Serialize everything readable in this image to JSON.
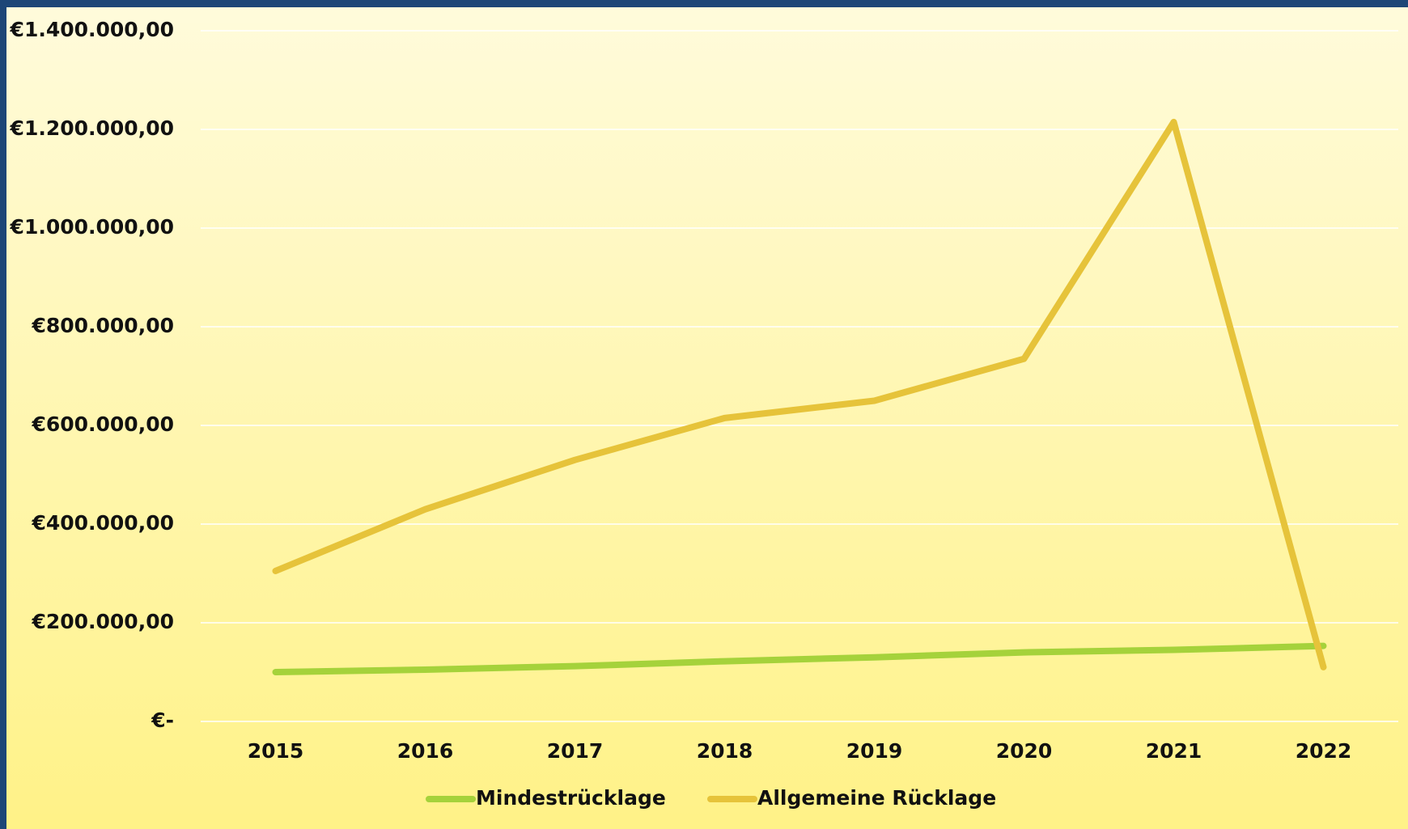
{
  "chart_data": {
    "type": "line",
    "categories": [
      "2015",
      "2016",
      "2017",
      "2018",
      "2019",
      "2020",
      "2021",
      "2022"
    ],
    "series": [
      {
        "name": "Mindestrücklage",
        "color": "#a5d23b",
        "values": [
          100000,
          105000,
          112000,
          122000,
          130000,
          140000,
          145000,
          153000
        ]
      },
      {
        "name": "Allgemeine Rücklage",
        "color": "#e6c33a",
        "values": [
          305000,
          430000,
          530000,
          615000,
          650000,
          735000,
          1215000,
          110000
        ]
      }
    ],
    "ylim": [
      0,
      1400000
    ],
    "yticks": [
      {
        "value": 0,
        "label": "€-"
      },
      {
        "value": 200000,
        "label": "€200.000,00"
      },
      {
        "value": 400000,
        "label": "€400.000,00"
      },
      {
        "value": 600000,
        "label": "€600.000,00"
      },
      {
        "value": 800000,
        "label": "€800.000,00"
      },
      {
        "value": 1000000,
        "label": "€1.000.000,00"
      },
      {
        "value": 1200000,
        "label": "€1.200.000,00"
      },
      {
        "value": 1400000,
        "label": "€1.400.000,00"
      }
    ],
    "grid": true,
    "legend": "bottom"
  }
}
